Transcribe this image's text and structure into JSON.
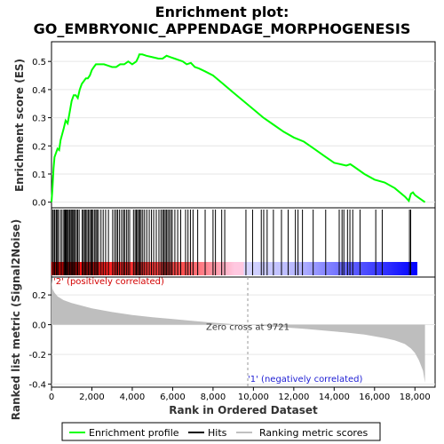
{
  "chart_data": {
    "type": "line",
    "title_line1": "Enrichment plot:",
    "title_line2": "GO_EMBRYONIC_APPENDAGE_MORPHOGENESIS",
    "top_panel": {
      "ylabel": "Enrichment score (ES)",
      "ylim": [
        -0.02,
        0.57
      ],
      "yticks": [
        0.0,
        0.1,
        0.2,
        0.3,
        0.4,
        0.5
      ],
      "ytick_labels": [
        "0.0",
        "0.1",
        "0.2",
        "0.3",
        "0.4",
        "0.5"
      ],
      "line_color": "#00ff00",
      "series": [
        {
          "name": "Enrichment profile",
          "x": [
            0,
            50,
            100,
            150,
            200,
            300,
            380,
            450,
            600,
            700,
            800,
            900,
            1000,
            1100,
            1200,
            1300,
            1400,
            1500,
            1600,
            1700,
            1800,
            1900,
            2000,
            2100,
            2200,
            2400,
            2600,
            2800,
            3000,
            3200,
            3400,
            3600,
            3800,
            4000,
            4200,
            4300,
            4350,
            4500,
            4700,
            5000,
            5300,
            5500,
            5700,
            5900,
            6100,
            6300,
            6500,
            6700,
            6900,
            7100,
            7300,
            7600,
            8000,
            8500,
            9000,
            9500,
            10000,
            10500,
            11000,
            11500,
            12000,
            12500,
            13000,
            13500,
            14000,
            14300,
            14600,
            14800,
            15000,
            15500,
            16000,
            16500,
            17000,
            17500,
            17700,
            17800,
            17900,
            18000,
            18200,
            18500
          ],
          "y": [
            0.0,
            0.05,
            0.12,
            0.16,
            0.17,
            0.19,
            0.185,
            0.22,
            0.26,
            0.29,
            0.28,
            0.32,
            0.36,
            0.38,
            0.38,
            0.37,
            0.4,
            0.42,
            0.43,
            0.44,
            0.44,
            0.45,
            0.47,
            0.48,
            0.49,
            0.49,
            0.49,
            0.485,
            0.48,
            0.48,
            0.49,
            0.49,
            0.5,
            0.49,
            0.5,
            0.515,
            0.525,
            0.525,
            0.52,
            0.515,
            0.51,
            0.51,
            0.52,
            0.515,
            0.51,
            0.505,
            0.5,
            0.49,
            0.495,
            0.48,
            0.475,
            0.465,
            0.45,
            0.42,
            0.39,
            0.36,
            0.33,
            0.3,
            0.275,
            0.25,
            0.23,
            0.215,
            0.19,
            0.165,
            0.14,
            0.135,
            0.13,
            0.135,
            0.125,
            0.1,
            0.08,
            0.07,
            0.05,
            0.02,
            0.005,
            0.03,
            0.035,
            0.025,
            0.015,
            0.0
          ]
        }
      ]
    },
    "hits_panel": {
      "hit_positions": [
        60,
        130,
        170,
        240,
        300,
        340,
        440,
        520,
        610,
        660,
        700,
        740,
        790,
        840,
        900,
        960,
        1010,
        1060,
        1110,
        1170,
        1240,
        1300,
        1370,
        1520,
        1580,
        1640,
        1700,
        1760,
        1830,
        1890,
        1960,
        2010,
        2060,
        2140,
        2200,
        2260,
        2330,
        2450,
        2560,
        2680,
        2820,
        3030,
        3130,
        3210,
        3280,
        3370,
        3470,
        3560,
        3620,
        3710,
        3790,
        3870,
        4060,
        4140,
        4200,
        4260,
        4320,
        4380,
        4440,
        4520,
        4610,
        4720,
        4840,
        4950,
        5060,
        5190,
        5320,
        5420,
        5500,
        5560,
        5630,
        5690,
        5760,
        5830,
        5910,
        5980,
        6110,
        6250,
        6400,
        6640,
        6760,
        6880,
        7010,
        7240,
        7610,
        8000,
        8120,
        8430,
        8580,
        9630,
        9960,
        10390,
        10510,
        10680,
        10990,
        11390,
        11720,
        12080,
        12210,
        12430,
        12960,
        13580,
        14250,
        14390,
        14480,
        14660,
        14780,
        14920,
        15280,
        16060,
        16380,
        17730,
        17790
      ]
    },
    "bottom_panel": {
      "ylabel": "Ranked list metric (Signal2Noise)",
      "ylim": [
        -0.42,
        0.32
      ],
      "yticks": [
        -0.4,
        -0.2,
        0.0,
        0.2
      ],
      "ytick_labels": [
        "-0.4",
        "-0.2",
        "0.0",
        "0.2"
      ],
      "metric_x": [
        0,
        50,
        150,
        300,
        600,
        1000,
        2000,
        3000,
        4000,
        5000,
        6000,
        7000,
        8000,
        9000,
        9721,
        10500,
        11500,
        12500,
        13500,
        14500,
        15500,
        16500,
        17000,
        17500,
        17800,
        18000,
        18200,
        18400,
        18500
      ],
      "metric_y": [
        0.3,
        0.24,
        0.215,
        0.19,
        0.165,
        0.145,
        0.11,
        0.085,
        0.065,
        0.05,
        0.038,
        0.025,
        0.013,
        0.004,
        0.0,
        -0.008,
        -0.018,
        -0.028,
        -0.04,
        -0.052,
        -0.067,
        -0.09,
        -0.105,
        -0.13,
        -0.16,
        -0.19,
        -0.24,
        -0.31,
        -0.39
      ],
      "zero_cross_label": "Zero cross at 9721",
      "zero_cross_x": 9721,
      "pos_label": "'2' (positively correlated)",
      "neg_label": "'1' (negatively correlated)"
    },
    "xaxis": {
      "xlabel": "Rank in Ordered Dataset",
      "xlim": [
        0,
        19000
      ],
      "xticks": [
        0,
        2000,
        4000,
        6000,
        8000,
        10000,
        12000,
        14000,
        16000,
        18000
      ],
      "xtick_labels": [
        "0",
        "2,000",
        "4,000",
        "6,000",
        "8,000",
        "10,000",
        "12,000",
        "14,000",
        "16,000",
        "18,000"
      ],
      "data_max": 18500
    },
    "legend": {
      "placement": "bottom",
      "items": [
        {
          "name": "Enrichment profile",
          "color": "#00ff00"
        },
        {
          "name": "Hits",
          "color": "#000000"
        },
        {
          "name": "Ranking metric scores",
          "color": "#c0c0c0"
        }
      ]
    },
    "colors": {
      "positive": "#ff0000",
      "negative": "#0000ff",
      "metric_fill": "#bebebe",
      "pos_text": "#d40000",
      "neg_text": "#2020d4"
    }
  }
}
